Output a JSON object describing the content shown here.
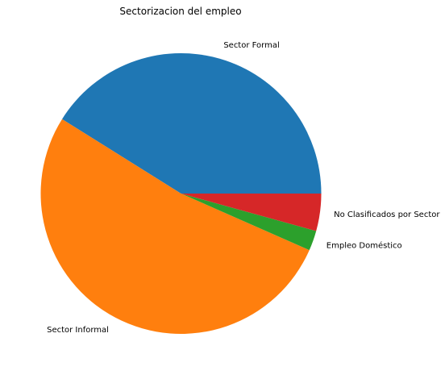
{
  "chart_data": {
    "type": "pie",
    "title": "Sectorizacion del empleo",
    "slices": [
      {
        "label": "Sector Formal",
        "value": 41.1,
        "color": "#1f77b4"
      },
      {
        "label": "Sector Informal",
        "value": 52.3,
        "color": "#ff7f0e"
      },
      {
        "label": "Empleo Doméstico",
        "value": 2.3,
        "color": "#2ca02c"
      },
      {
        "label": "No Clasificados por Sector",
        "value": 4.3,
        "color": "#d62728"
      }
    ],
    "start_angle_deg": 0,
    "direction": "counterclockwise"
  }
}
